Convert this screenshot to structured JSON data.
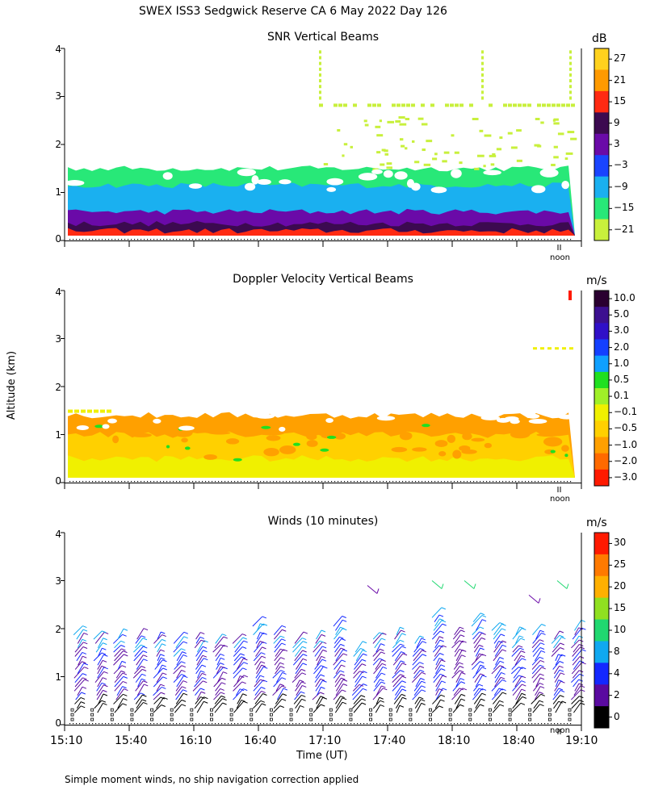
{
  "page": {
    "title": "SWEX ISS3 Sedgwick Reserve CA   6 May 2022 Day 126",
    "ylabel": "Altitude (km)",
    "xlabel": "Time (UT)",
    "footnote": "Simple moment winds, no ship navigation correction applied",
    "noon_label": "noon"
  },
  "chart_data": [
    {
      "type": "heatmap",
      "title": "SNR Vertical Beams",
      "ylabel": "Altitude (km)",
      "yticks": [
        "0",
        "1",
        "2",
        "3",
        "4"
      ],
      "ylim": [
        0,
        4
      ],
      "colorbar_unit": "dB",
      "colorbar_labels": [
        "27",
        "21",
        "15",
        "9",
        "3",
        "−3",
        "−9",
        "−15",
        "−21"
      ],
      "colorbar_colors": [
        "#ffd21e",
        "#ff9a00",
        "#ff2a12",
        "#3c0a50",
        "#6a0aa8",
        "#1a44ff",
        "#1ab0f0",
        "#28e878",
        "#c8f03c"
      ],
      "layers": [
        {
          "alt_low": 0.1,
          "alt_high": 0.2,
          "color_label": "15"
        },
        {
          "alt_low": 0.2,
          "alt_high": 0.35,
          "color_label": "9"
        },
        {
          "alt_low": 0.35,
          "alt_high": 0.6,
          "color_label": "3"
        },
        {
          "alt_low": 0.6,
          "alt_high": 1.15,
          "color_label": "−9"
        },
        {
          "alt_low": 1.15,
          "alt_high": 1.5,
          "color_label": "−15"
        },
        {
          "alt_low": 2.75,
          "alt_high": 2.85,
          "color_label": "−21"
        }
      ]
    },
    {
      "type": "heatmap",
      "title": "Doppler Velocity Vertical Beams",
      "ylabel": "Altitude (km)",
      "yticks": [
        "0",
        "1",
        "2",
        "3",
        "4"
      ],
      "ylim": [
        0,
        4
      ],
      "colorbar_unit": "m/s",
      "colorbar_labels": [
        "10.0",
        "5.0",
        "3.0",
        "2.0",
        "1.0",
        "0.5",
        "0.1",
        "−0.1",
        "−0.5",
        "−1.0",
        "−2.0",
        "−3.0"
      ],
      "colorbar_colors": [
        "#2a0030",
        "#3c1090",
        "#3010c8",
        "#1440ff",
        "#10a0ff",
        "#20e020",
        "#a0f028",
        "#f0f000",
        "#ffd000",
        "#ffa000",
        "#ff6a00",
        "#ff1a00"
      ],
      "layers": [
        {
          "alt_low": 0.1,
          "alt_high": 0.5,
          "color_label": "−0.1"
        },
        {
          "alt_low": 0.5,
          "alt_high": 1.0,
          "color_label": "−0.5"
        },
        {
          "alt_low": 1.0,
          "alt_high": 1.4,
          "color_label": "−1.0"
        }
      ]
    },
    {
      "type": "wind_barbs",
      "title": "Winds (10 minutes)",
      "ylabel": "Altitude (km)",
      "yticks": [
        "0",
        "1",
        "2",
        "3",
        "4"
      ],
      "ylim": [
        0,
        4
      ],
      "xlabel": "Time (UT)",
      "xticks": [
        "15:10",
        "15:40",
        "16:10",
        "16:40",
        "17:10",
        "17:40",
        "18:10",
        "18:40",
        "19:10"
      ],
      "colorbar_unit": "m/s",
      "colorbar_labels": [
        "30",
        "25",
        "20",
        "15",
        "10",
        "8",
        "4",
        "2",
        "0"
      ],
      "colorbar_colors": [
        "#ff1a00",
        "#ff7a00",
        "#ffb000",
        "#90e020",
        "#20d870",
        "#10a8f0",
        "#1428ff",
        "#5a0aa0",
        "#000000"
      ],
      "profiles": [
        {
          "top_km": 1.9
        },
        {
          "top_km": 1.8
        },
        {
          "top_km": 1.8
        },
        {
          "top_km": 1.8
        },
        {
          "top_km": 1.8
        },
        {
          "top_km": 1.7
        },
        {
          "top_km": 1.8
        },
        {
          "top_km": 1.7
        },
        {
          "top_km": 1.7
        },
        {
          "top_km": 2.1
        },
        {
          "top_km": 1.9
        },
        {
          "top_km": 1.7
        },
        {
          "top_km": 1.8
        },
        {
          "top_km": 2.1
        },
        {
          "top_km": 1.6
        },
        {
          "top_km": 1.8
        },
        {
          "top_km": 1.9
        },
        {
          "top_km": 1.7
        },
        {
          "top_km": 2.3
        },
        {
          "top_km": 1.9
        },
        {
          "top_km": 2.2
        },
        {
          "top_km": 2.0
        },
        {
          "top_km": 1.9
        },
        {
          "top_km": 1.9
        },
        {
          "top_km": 1.8
        },
        {
          "top_km": 2.0
        }
      ]
    }
  ]
}
